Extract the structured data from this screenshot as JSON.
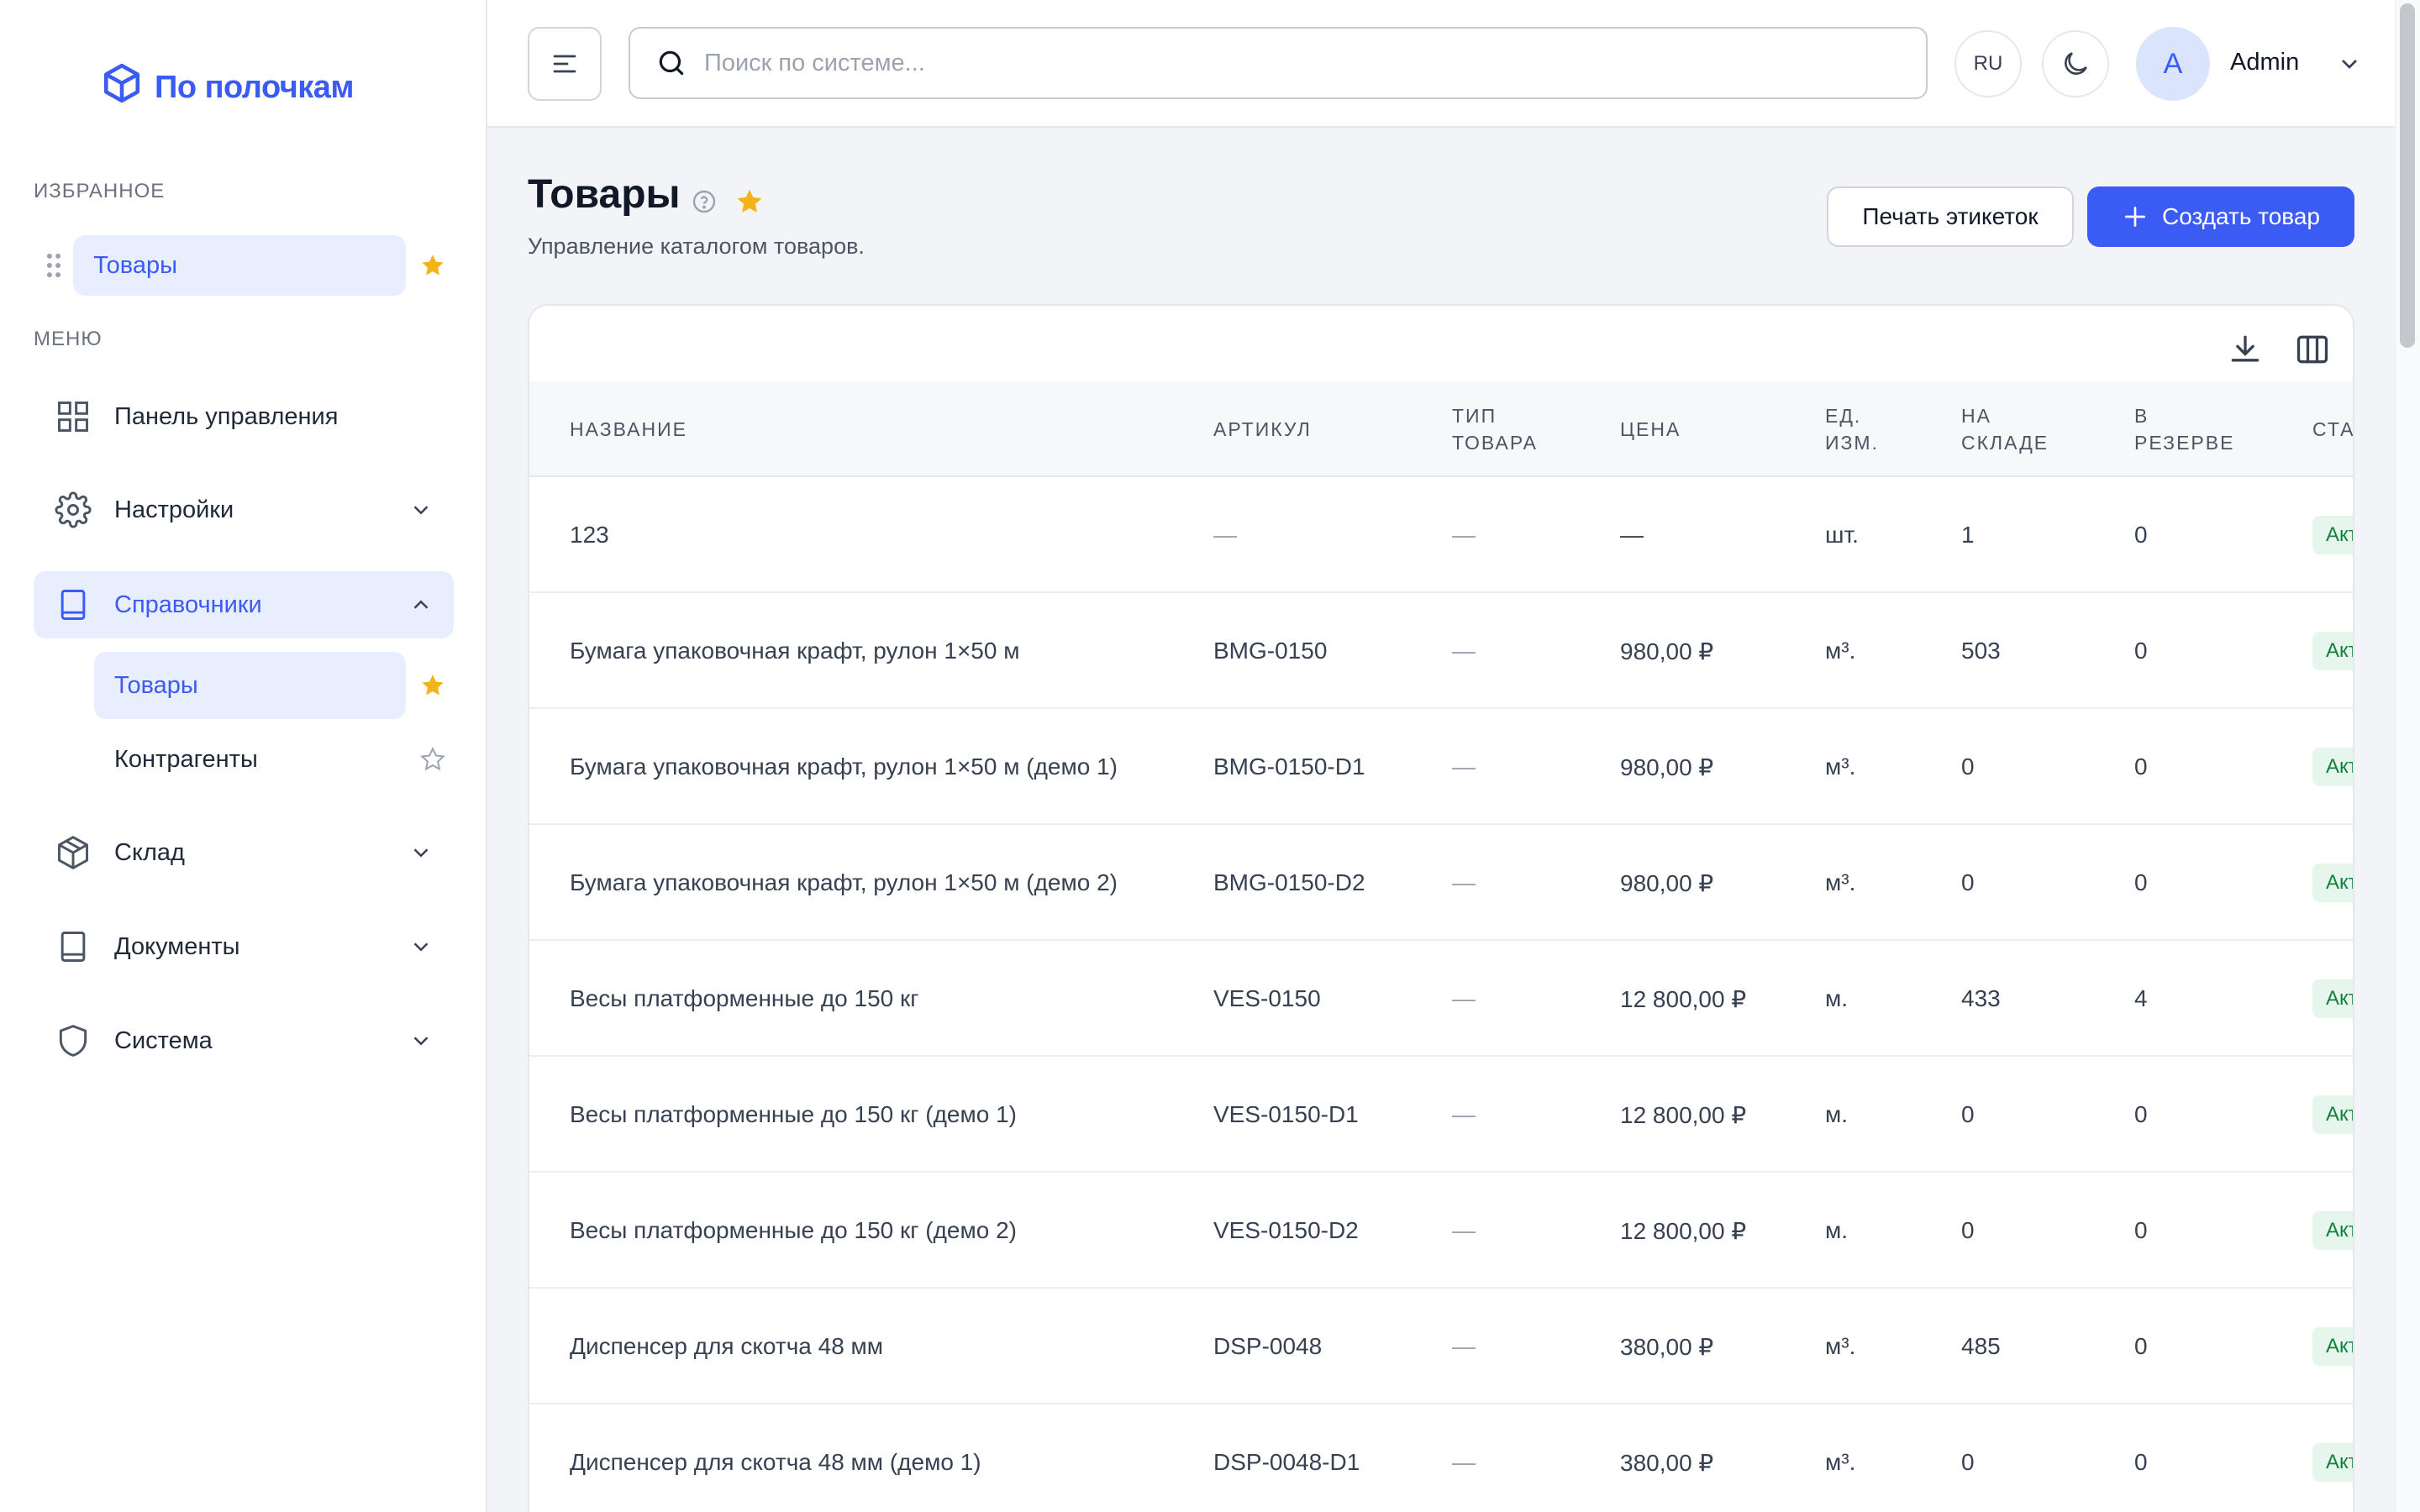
{
  "app": {
    "logo_text": "По полочкам"
  },
  "sidebar": {
    "favorites_label": "Избранное",
    "favorites": [
      {
        "label": "Товары",
        "starred": true
      }
    ],
    "menu_label": "Меню",
    "items": [
      {
        "label": "Панель управления",
        "icon": "grid-icon"
      },
      {
        "label": "Настройки",
        "icon": "gear-icon",
        "expandable": true
      },
      {
        "label": "Справочники",
        "icon": "book-icon",
        "expanded": true,
        "active": true
      },
      {
        "label": "Склад",
        "icon": "box-icon",
        "expandable": true
      },
      {
        "label": "Документы",
        "icon": "document-icon",
        "expandable": true
      },
      {
        "label": "Система",
        "icon": "shield-icon",
        "expandable": true
      }
    ],
    "subitems": [
      {
        "label": "Товары",
        "active": true,
        "starred": true
      },
      {
        "label": "Контрагенты",
        "active": false,
        "starred": false
      }
    ]
  },
  "topbar": {
    "search_placeholder": "Поиск по системе...",
    "language": "RU",
    "user_initial": "A",
    "user_name": "Admin"
  },
  "page": {
    "title": "Товары",
    "subtitle": "Управление каталогом товаров.",
    "print_labels": "Печать этикеток",
    "create_product": "Создать товар"
  },
  "table": {
    "columns": [
      "Название",
      "Артикул",
      "Тип товара",
      "Цена",
      "Ед. изм.",
      "На складе",
      "В резерве",
      "Ста"
    ],
    "rows": [
      {
        "name": "123",
        "sku": "—",
        "type": "—",
        "price": "—",
        "unit": "шт.",
        "stock": "1",
        "reserve": "0",
        "status": "Активен"
      },
      {
        "name": "Бумага упаковочная крафт, рулон 1×50 м",
        "sku": "BMG-0150",
        "type": "—",
        "price": "980,00 ₽",
        "unit": "м³.",
        "stock": "503",
        "reserve": "0",
        "status": "Активен"
      },
      {
        "name": "Бумага упаковочная крафт, рулон 1×50 м (демо 1)",
        "sku": "BMG-0150-D1",
        "type": "—",
        "price": "980,00 ₽",
        "unit": "м³.",
        "stock": "0",
        "reserve": "0",
        "status": "Активен"
      },
      {
        "name": "Бумага упаковочная крафт, рулон 1×50 м (демо 2)",
        "sku": "BMG-0150-D2",
        "type": "—",
        "price": "980,00 ₽",
        "unit": "м³.",
        "stock": "0",
        "reserve": "0",
        "status": "Активен"
      },
      {
        "name": "Весы платформенные до 150 кг",
        "sku": "VES-0150",
        "type": "—",
        "price": "12 800,00 ₽",
        "unit": "м.",
        "stock": "433",
        "reserve": "4",
        "status": "Активен"
      },
      {
        "name": "Весы платформенные до 150 кг (демо 1)",
        "sku": "VES-0150-D1",
        "type": "—",
        "price": "12 800,00 ₽",
        "unit": "м.",
        "stock": "0",
        "reserve": "0",
        "status": "Активен"
      },
      {
        "name": "Весы платформенные до 150 кг (демо 2)",
        "sku": "VES-0150-D2",
        "type": "—",
        "price": "12 800,00 ₽",
        "unit": "м.",
        "stock": "0",
        "reserve": "0",
        "status": "Активен"
      },
      {
        "name": "Диспенсер для скотча 48 мм",
        "sku": "DSP-0048",
        "type": "—",
        "price": "380,00 ₽",
        "unit": "м³.",
        "stock": "485",
        "reserve": "0",
        "status": "Активен"
      },
      {
        "name": "Диспенсер для скотча 48 мм (демо 1)",
        "sku": "DSP-0048-D1",
        "type": "—",
        "price": "380,00 ₽",
        "unit": "м³.",
        "stock": "0",
        "reserve": "0",
        "status": "Активен"
      }
    ]
  },
  "colors": {
    "accent": "#3b5bf5",
    "star": "#f2b418",
    "status_bg": "#e6f6ec",
    "status_text": "#15803d"
  }
}
